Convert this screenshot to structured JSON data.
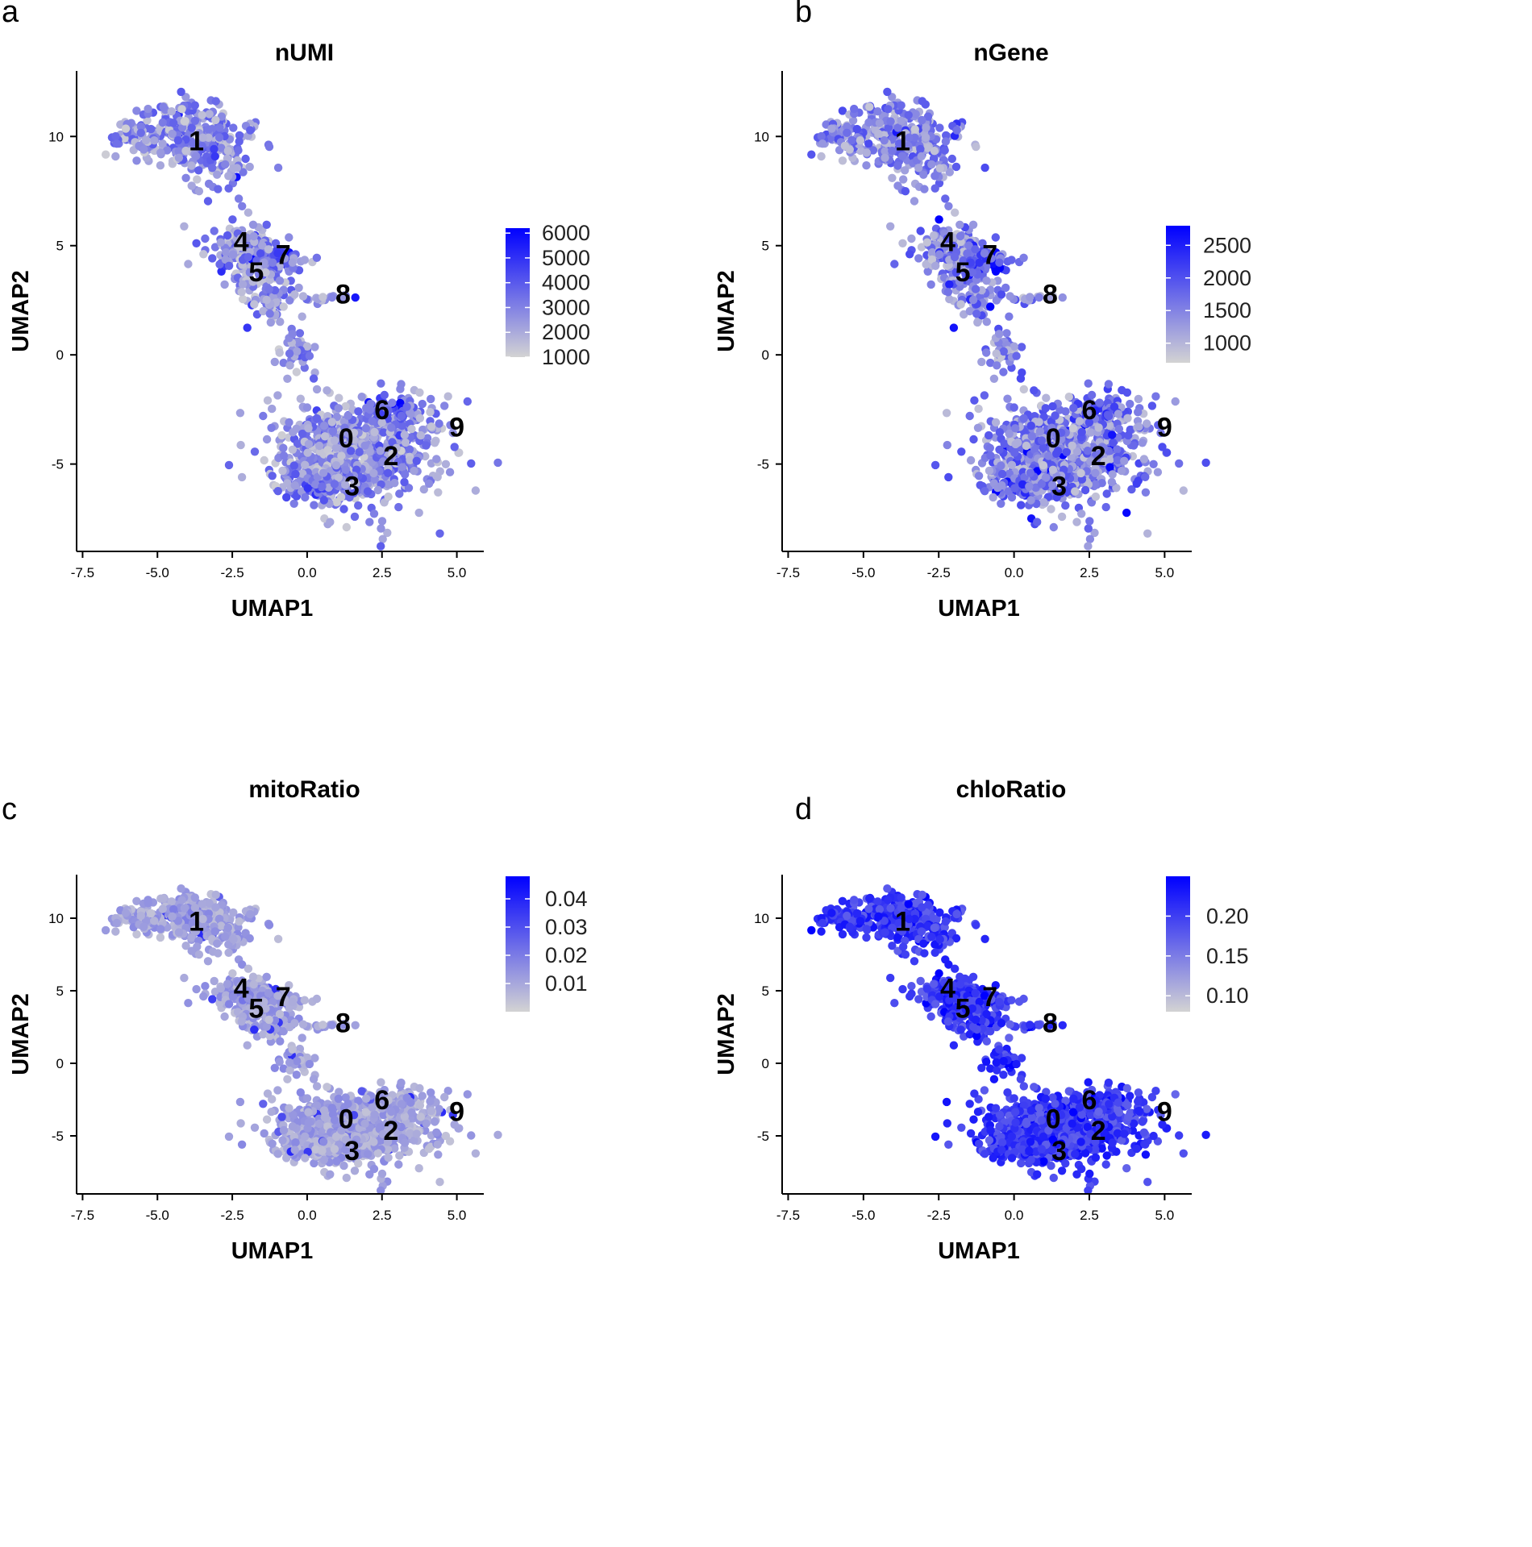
{
  "panels": [
    {
      "letter": "a",
      "chart_data": {
        "type": "scatter",
        "title": "nUMI",
        "xlabel": "UMAP1",
        "ylabel": "UMAP2",
        "xlim": [
          -7.7,
          5.9
        ],
        "ylim": [
          -9.0,
          13.0
        ],
        "x_ticks": [
          "-7.5",
          "-5.0",
          "-2.5",
          "0.0",
          "2.5",
          "5.0"
        ],
        "y_ticks": [
          "-5",
          "0",
          "5",
          "10"
        ],
        "legend": {
          "placement": "right",
          "min": 1000,
          "max": 6200,
          "ticks": [
            "6000",
            "5000",
            "4000",
            "3000",
            "2000",
            "1000"
          ]
        },
        "color_low": "#d3d3d3",
        "color_high": "#0000ff",
        "cluster_labels": [
          {
            "label": "0",
            "x": 1.3,
            "y": -3.8
          },
          {
            "label": "1",
            "x": -3.7,
            "y": 9.8
          },
          {
            "label": "2",
            "x": 2.8,
            "y": -4.6
          },
          {
            "label": "3",
            "x": 1.5,
            "y": -6.0
          },
          {
            "label": "4",
            "x": -2.2,
            "y": 5.2
          },
          {
            "label": "5",
            "x": -1.7,
            "y": 3.8
          },
          {
            "label": "6",
            "x": 2.5,
            "y": -2.5
          },
          {
            "label": "7",
            "x": -0.8,
            "y": 4.6
          },
          {
            "label": "8",
            "x": 1.2,
            "y": 2.8
          },
          {
            "label": "9",
            "x": 5.0,
            "y": -3.3
          }
        ]
      }
    },
    {
      "letter": "b",
      "chart_data": {
        "type": "scatter",
        "title": "nGene",
        "xlabel": "UMAP1",
        "ylabel": "UMAP2",
        "xlim": [
          -7.7,
          5.9
        ],
        "ylim": [
          -9.0,
          13.0
        ],
        "x_ticks": [
          "-7.5",
          "-5.0",
          "-2.5",
          "0.0",
          "2.5",
          "5.0"
        ],
        "y_ticks": [
          "-5",
          "0",
          "5",
          "10"
        ],
        "legend": {
          "placement": "right",
          "min": 700,
          "max": 2800,
          "ticks": [
            "2500",
            "2000",
            "1500",
            "1000"
          ]
        },
        "color_low": "#d3d3d3",
        "color_high": "#0000ff",
        "cluster_labels": [
          {
            "label": "0",
            "x": 1.3,
            "y": -3.8
          },
          {
            "label": "1",
            "x": -3.7,
            "y": 9.8
          },
          {
            "label": "2",
            "x": 2.8,
            "y": -4.6
          },
          {
            "label": "3",
            "x": 1.5,
            "y": -6.0
          },
          {
            "label": "4",
            "x": -2.2,
            "y": 5.2
          },
          {
            "label": "5",
            "x": -1.7,
            "y": 3.8
          },
          {
            "label": "6",
            "x": 2.5,
            "y": -2.5
          },
          {
            "label": "7",
            "x": -0.8,
            "y": 4.6
          },
          {
            "label": "8",
            "x": 1.2,
            "y": 2.8
          },
          {
            "label": "9",
            "x": 5.0,
            "y": -3.3
          }
        ]
      }
    },
    {
      "letter": "c",
      "chart_data": {
        "type": "scatter",
        "title": "mitoRatio",
        "xlabel": "UMAP1",
        "ylabel": "UMAP2",
        "xlim": [
          -7.7,
          5.9
        ],
        "ylim": [
          -9.0,
          13.0
        ],
        "x_ticks": [
          "-7.5",
          "-5.0",
          "-2.5",
          "0.0",
          "2.5",
          "5.0"
        ],
        "y_ticks": [
          "-5",
          "0",
          "5",
          "10"
        ],
        "legend": {
          "placement": "right",
          "min": 0.0,
          "max": 0.048,
          "ticks": [
            "0.04",
            "0.03",
            "0.02",
            "0.01"
          ]
        },
        "color_low": "#d3d3d3",
        "color_high": "#0000ff",
        "cluster_labels": [
          {
            "label": "0",
            "x": 1.3,
            "y": -3.8
          },
          {
            "label": "1",
            "x": -3.7,
            "y": 9.8
          },
          {
            "label": "2",
            "x": 2.8,
            "y": -4.6
          },
          {
            "label": "3",
            "x": 1.5,
            "y": -6.0
          },
          {
            "label": "4",
            "x": -2.2,
            "y": 5.2
          },
          {
            "label": "5",
            "x": -1.7,
            "y": 3.8
          },
          {
            "label": "6",
            "x": 2.5,
            "y": -2.5
          },
          {
            "label": "7",
            "x": -0.8,
            "y": 4.6
          },
          {
            "label": "8",
            "x": 1.2,
            "y": 2.8
          },
          {
            "label": "9",
            "x": 5.0,
            "y": -3.3
          }
        ]
      }
    },
    {
      "letter": "d",
      "chart_data": {
        "type": "scatter",
        "title": "chloRatio",
        "xlabel": "UMAP1",
        "ylabel": "UMAP2",
        "xlim": [
          -7.7,
          5.9
        ],
        "ylim": [
          -9.0,
          13.0
        ],
        "x_ticks": [
          "-7.5",
          "-5.0",
          "-2.5",
          "0.0",
          "2.5",
          "5.0"
        ],
        "y_ticks": [
          "-5",
          "0",
          "5",
          "10"
        ],
        "legend": {
          "placement": "right",
          "min": 0.08,
          "max": 0.25,
          "ticks": [
            "0.20",
            "0.15",
            "0.10"
          ]
        },
        "color_low": "#d3d3d3",
        "color_high": "#0000ff",
        "cluster_labels": [
          {
            "label": "0",
            "x": 1.3,
            "y": -3.8
          },
          {
            "label": "1",
            "x": -3.7,
            "y": 9.8
          },
          {
            "label": "2",
            "x": 2.8,
            "y": -4.6
          },
          {
            "label": "3",
            "x": 1.5,
            "y": -6.0
          },
          {
            "label": "4",
            "x": -2.2,
            "y": 5.2
          },
          {
            "label": "5",
            "x": -1.7,
            "y": 3.8
          },
          {
            "label": "6",
            "x": 2.5,
            "y": -2.5
          },
          {
            "label": "7",
            "x": -0.8,
            "y": 4.6
          },
          {
            "label": "8",
            "x": 1.2,
            "y": 2.8
          },
          {
            "label": "9",
            "x": 5.0,
            "y": -3.3
          }
        ]
      }
    }
  ]
}
